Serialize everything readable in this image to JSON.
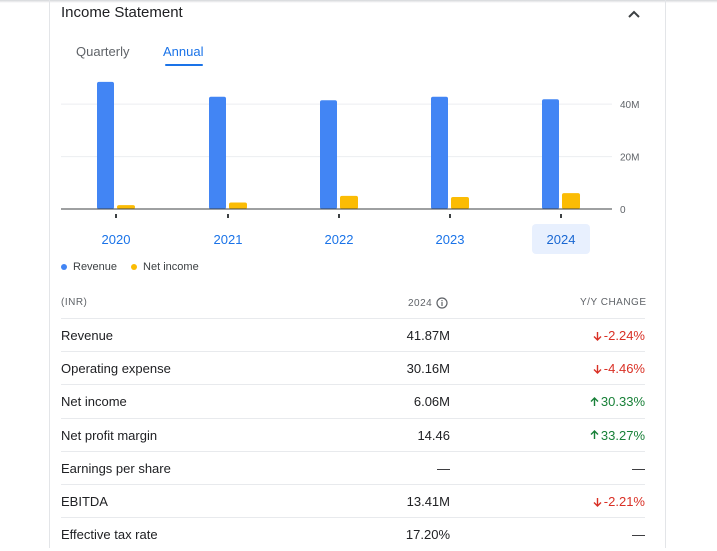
{
  "header": {
    "title": "Income Statement"
  },
  "tabs": [
    {
      "label": "Quarterly",
      "selected": false
    },
    {
      "label": "Annual",
      "selected": true
    }
  ],
  "chart_data": {
    "type": "bar",
    "categories": [
      "2020",
      "2021",
      "2022",
      "2023",
      "2024"
    ],
    "selected_category": "2024",
    "series": [
      {
        "name": "Revenue",
        "color": "#4285f4",
        "values": [
          48.5,
          42.8,
          41.5,
          42.8,
          41.87
        ]
      },
      {
        "name": "Net income",
        "color": "#fbbc04",
        "values": [
          1.5,
          2.5,
          5.0,
          4.6,
          6.06
        ]
      }
    ],
    "yticks": [
      {
        "value": 0,
        "label": "0"
      },
      {
        "value": 20,
        "label": "20M"
      },
      {
        "value": 40,
        "label": "40M"
      }
    ],
    "ylim": [
      0,
      51.5
    ],
    "axis_position": "right",
    "grid": true,
    "legend_position": "bottom-left"
  },
  "table": {
    "headers": {
      "unit": "(INR)",
      "year": "2024",
      "change": "Y/Y CHANGE"
    },
    "rows": [
      {
        "label": "Revenue",
        "value": "41.87M",
        "change": "-2.24%",
        "direction": "down"
      },
      {
        "label": "Operating expense",
        "value": "30.16M",
        "change": "-4.46%",
        "direction": "down"
      },
      {
        "label": "Net income",
        "value": "6.06M",
        "change": "30.33%",
        "direction": "up"
      },
      {
        "label": "Net profit margin",
        "value": "14.46",
        "change": "33.27%",
        "direction": "up"
      },
      {
        "label": "Earnings per share",
        "value": "—",
        "change": "—",
        "direction": "neutral"
      },
      {
        "label": "EBITDA",
        "value": "13.41M",
        "change": "-2.21%",
        "direction": "down"
      },
      {
        "label": "Effective tax rate",
        "value": "17.20%",
        "change": "—",
        "direction": "neutral"
      }
    ]
  }
}
